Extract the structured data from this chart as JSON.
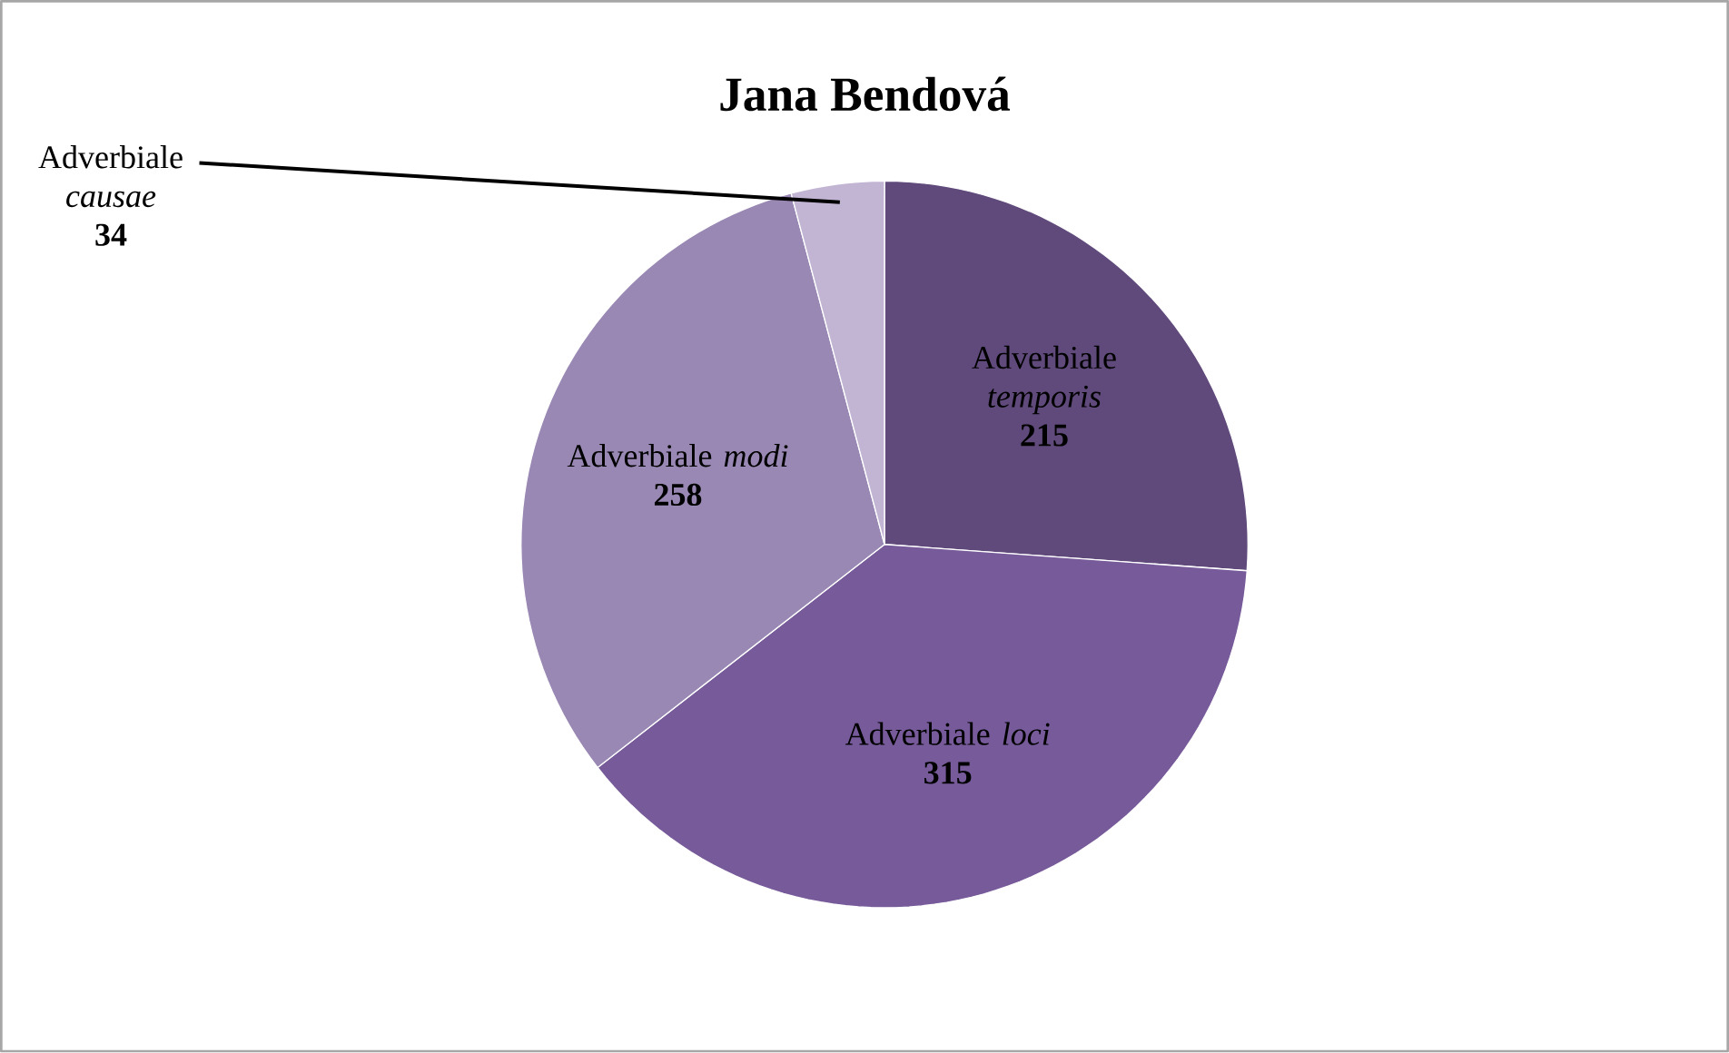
{
  "chart_data": {
    "type": "pie",
    "title": "Jana Bendová",
    "categories": [
      "Adverbiale *temporis*",
      "Adverbiale *loci*",
      "Adverbiale *modi*",
      "Adverbiale *causae*"
    ],
    "values": [
      215,
      315,
      258,
      34
    ],
    "colors": [
      "#604a7b",
      "#775a9a",
      "#9a88b4",
      "#c2b5d3"
    ],
    "data_labels": true
  }
}
